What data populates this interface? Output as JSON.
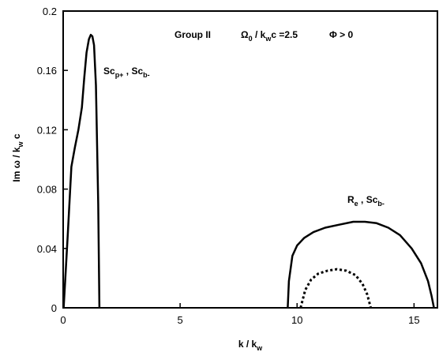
{
  "chart_data": {
    "type": "line",
    "title": "",
    "xlabel": {
      "main": "k / k",
      "sub": "w"
    },
    "ylabel": {
      "pre": "Im ω / k",
      "sub": "w",
      "post": " c"
    },
    "xlim": [
      0,
      16
    ],
    "ylim": [
      0,
      0.2
    ],
    "grid": false,
    "x_ticks": [
      0,
      5,
      10,
      15
    ],
    "y_ticks": [
      0,
      0.04,
      0.08,
      0.12,
      0.16,
      0.2
    ],
    "x_tick_labels": [
      "0",
      "5",
      "10",
      "15"
    ],
    "y_tick_labels": [
      "0",
      "0.04",
      "0.08",
      "0.12",
      "0.16",
      "0.2"
    ],
    "annotations": {
      "header": {
        "group": "Group II",
        "omega_pre": "Ω",
        "omega_sub": "0",
        "omega_mid": " / k",
        "omega_sub2": "w",
        "omega_post": "c =2.5",
        "phi": "Φ > 0"
      },
      "label_left": {
        "a": "Sc",
        "a_sub": "p+",
        "sep": " , Sc",
        "b_sub": "b-"
      },
      "label_right": {
        "a": "R",
        "a_sub": "e",
        "sep": " , Sc",
        "b_sub": "b-"
      }
    },
    "series": [
      {
        "style": "solid",
        "x": [
          0.02,
          0.2,
          0.35,
          0.5,
          0.65,
          0.8,
          0.9,
          1.0,
          1.1,
          1.18,
          1.25,
          1.32,
          1.4,
          1.5,
          1.55
        ],
        "y": [
          0.0,
          0.05,
          0.095,
          0.108,
          0.12,
          0.135,
          0.155,
          0.172,
          0.181,
          0.184,
          0.183,
          0.177,
          0.15,
          0.07,
          0.0
        ]
      },
      {
        "style": "solid",
        "x": [
          9.6,
          9.65,
          9.8,
          10.0,
          10.3,
          10.7,
          11.2,
          11.8,
          12.4,
          12.9,
          13.4,
          13.9,
          14.4,
          14.9,
          15.3,
          15.6,
          15.75,
          15.85
        ],
        "y": [
          0.0,
          0.018,
          0.035,
          0.042,
          0.047,
          0.051,
          0.054,
          0.056,
          0.058,
          0.058,
          0.057,
          0.054,
          0.049,
          0.04,
          0.03,
          0.018,
          0.008,
          0.0
        ]
      },
      {
        "style": "dotted",
        "x": [
          10.15,
          10.35,
          10.6,
          10.9,
          11.3,
          11.7,
          12.1,
          12.5,
          12.8,
          13.0,
          13.15
        ],
        "y": [
          0.0,
          0.012,
          0.019,
          0.023,
          0.025,
          0.026,
          0.025,
          0.022,
          0.016,
          0.009,
          0.0
        ]
      }
    ]
  }
}
